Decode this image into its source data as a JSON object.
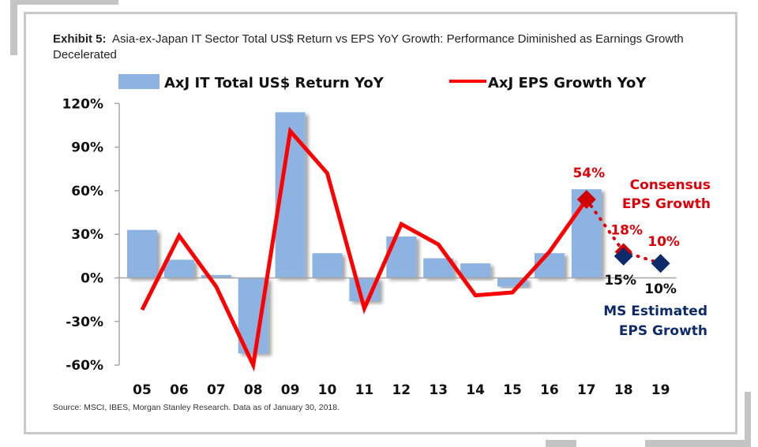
{
  "exhibit": {
    "label": "Exhibit 5:",
    "title": "Asia-ex-Japan IT Sector Total US$ Return vs EPS YoY Growth: Performance Diminished as Earnings Growth Decelerated"
  },
  "source": "Source: MSCI, IBES, Morgan Stanley Research. Data as of January 30, 2018.",
  "colors": {
    "bar": "#8db3e2",
    "line": "#ff0000",
    "consensus": "#e0000a",
    "ms_estimate": "#0d2a6b",
    "axis": "#a6a6a6",
    "frame": "#c9c9c9"
  },
  "chart_data": {
    "type": "bar+line",
    "title": "Asia-ex-Japan IT Sector Total US$ Return vs EPS YoY Growth",
    "xlabel": "",
    "ylabel": "",
    "ylim": [
      -60,
      120
    ],
    "yticks": [
      120,
      90,
      60,
      30,
      0,
      -30,
      -60
    ],
    "ytick_labels": [
      "120%",
      "90%",
      "60%",
      "30%",
      "0%",
      "-30%",
      "-60%"
    ],
    "categories": [
      "05",
      "06",
      "07",
      "08",
      "09",
      "10",
      "11",
      "12",
      "13",
      "14",
      "15",
      "16",
      "17",
      "18",
      "19"
    ],
    "legend": {
      "placement": "top",
      "entries": [
        "AxJ IT Total US$ Return YoY",
        "AxJ EPS Growth YoY"
      ]
    },
    "series": [
      {
        "name": "AxJ IT Total US$ Return YoY",
        "type": "bar",
        "values": [
          33,
          12.5,
          2,
          -52,
          114,
          17,
          -16,
          28.5,
          13.5,
          10,
          -6,
          17,
          61,
          null,
          null
        ]
      },
      {
        "name": "AxJ EPS Growth YoY",
        "type": "line",
        "values": [
          -22,
          29,
          -6,
          -60,
          101,
          72,
          -21,
          37,
          23,
          -12,
          -10,
          18,
          54,
          null,
          null
        ]
      },
      {
        "name": "Consensus EPS Growth",
        "type": "dotted-line-diamond",
        "x": [
          "17",
          "18",
          "19"
        ],
        "values": [
          54,
          18,
          10
        ],
        "labels": [
          "54%",
          "18%",
          "10%"
        ]
      },
      {
        "name": "MS Estimated EPS Growth",
        "type": "diamond",
        "x": [
          "18",
          "19"
        ],
        "values": [
          15,
          10
        ],
        "labels": [
          "15%",
          "10%"
        ]
      }
    ],
    "annotations": {
      "consensus_line1": "Consensus",
      "consensus_line2": "EPS Growth",
      "ms_line1": "MS Estimated",
      "ms_line2": "EPS Growth"
    },
    "grid": false
  }
}
